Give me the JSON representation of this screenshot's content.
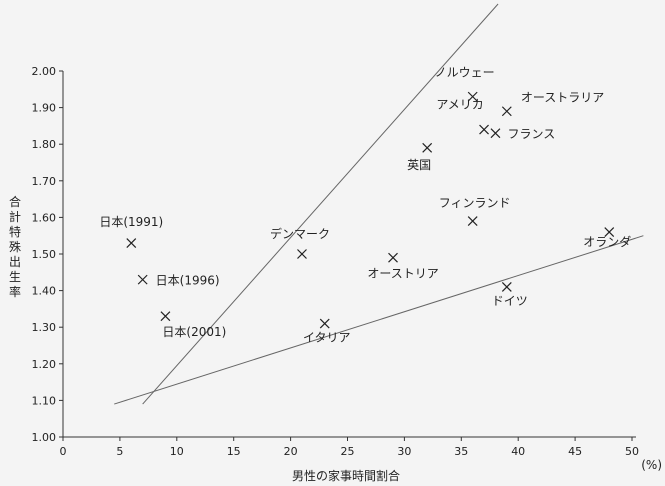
{
  "chart_data": {
    "type": "scatter",
    "title": "",
    "xlabel": "男性の家事時間割合",
    "xunit": "(%)",
    "ylabel": "合計特殊出生率",
    "xlim": [
      0,
      50
    ],
    "ylim": [
      1.0,
      2.0
    ],
    "xticks": [
      "0",
      "5",
      "10",
      "15",
      "20",
      "25",
      "30",
      "35",
      "40",
      "45",
      "50"
    ],
    "yticks": [
      "1.00",
      "1.10",
      "1.20",
      "1.30",
      "1.40",
      "1.50",
      "1.60",
      "1.70",
      "1.80",
      "1.90",
      "2.00"
    ],
    "grid": false,
    "points": [
      {
        "label": "日本(1991)",
        "x": 6,
        "y": 1.53
      },
      {
        "label": "日本(1996)",
        "x": 7,
        "y": 1.43
      },
      {
        "label": "日本(2001)",
        "x": 9,
        "y": 1.33
      },
      {
        "label": "デンマーク",
        "x": 21,
        "y": 1.5
      },
      {
        "label": "イタリア",
        "x": 23,
        "y": 1.31
      },
      {
        "label": "オーストリア",
        "x": 29,
        "y": 1.49
      },
      {
        "label": "英国",
        "x": 32,
        "y": 1.79
      },
      {
        "label": "ノルウェー",
        "x": 36,
        "y": 1.93
      },
      {
        "label": "フィンランド",
        "x": 36,
        "y": 1.59
      },
      {
        "label": "アメリカ",
        "x": 37,
        "y": 1.84
      },
      {
        "label": "フランス",
        "x": 38,
        "y": 1.83
      },
      {
        "label": "オーストラリア",
        "x": 39,
        "y": 1.89
      },
      {
        "label": "ドイツ",
        "x": 39,
        "y": 1.41
      },
      {
        "label": "オランダ",
        "x": 48,
        "y": 1.56
      }
    ],
    "trend_lines": [
      {
        "x1": 7,
        "y1": 1.09,
        "x2": 43,
        "y2": 2.35
      },
      {
        "x1": 4.5,
        "y1": 1.09,
        "x2": 51,
        "y2": 1.55
      }
    ]
  }
}
